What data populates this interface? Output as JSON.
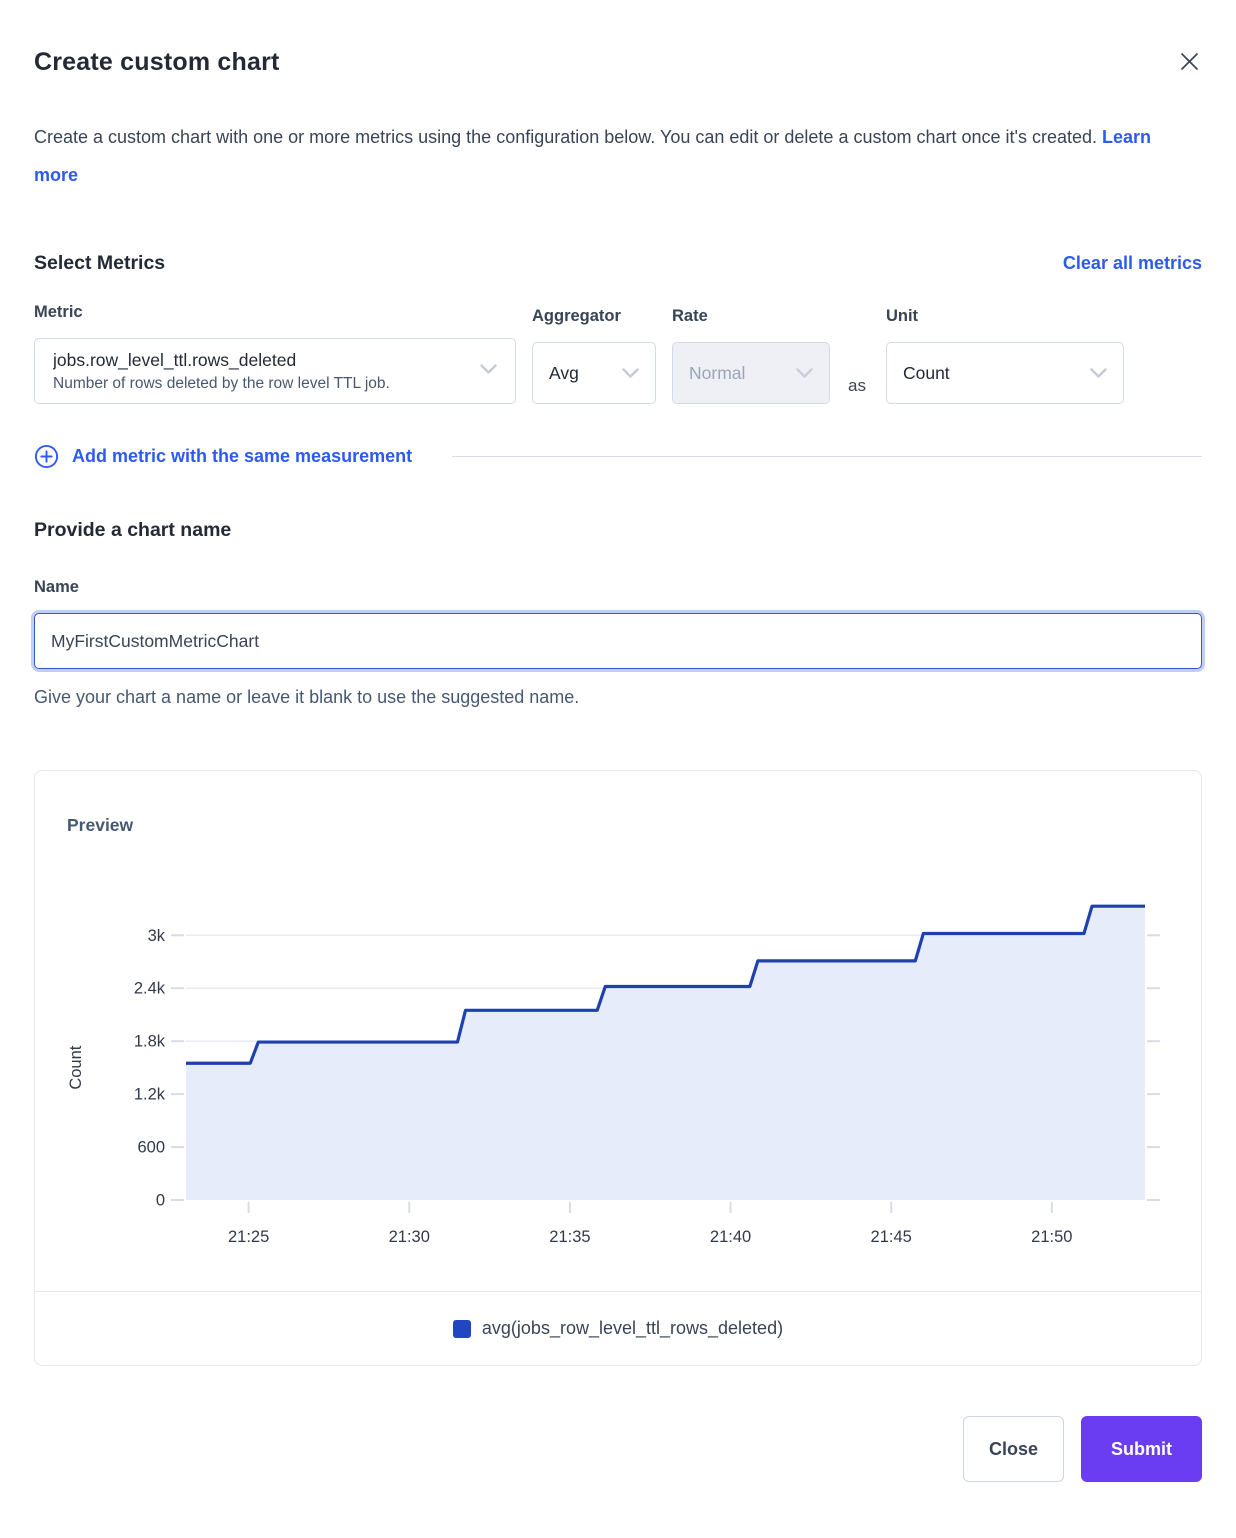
{
  "dialog": {
    "title": "Create custom chart",
    "description": "Create a custom chart with one or more metrics using the configuration below. You can edit or delete a custom chart once it's created.",
    "learn_more_label": "Learn more"
  },
  "metrics": {
    "heading": "Select Metrics",
    "clear_all_label": "Clear all metrics",
    "metric_label": "Metric",
    "metric": {
      "value": "jobs.row_level_ttl.rows_deleted",
      "description": "Number of rows deleted by the row level TTL job."
    },
    "aggregator_label": "Aggregator",
    "aggregator_value": "Avg",
    "rate_label": "Rate",
    "rate_value": "Normal",
    "as_text": "as",
    "unit_label": "Unit",
    "unit_value": "Count",
    "add_metric_label": "Add metric with the same measurement"
  },
  "name_section": {
    "heading": "Provide a chart name",
    "label": "Name",
    "value": "MyFirstCustomMetricChart",
    "helper": "Give your chart a name or leave it blank to use the suggested name."
  },
  "preview": {
    "heading": "Preview"
  },
  "footer": {
    "close_label": "Close",
    "submit_label": "Submit"
  },
  "colors": {
    "accent": "#2d5af0",
    "series-line": "#1e41ae",
    "series-fill": "#e7ecfa",
    "swatch": "#2145c3",
    "submit": "#6a3df2"
  },
  "chart_data": {
    "type": "area",
    "title": "Preview",
    "xlabel": "",
    "ylabel": "Count",
    "grid": true,
    "legend_position": "bottom",
    "xlim_minutes_after_21_00": [
      23.05,
      52.9
    ],
    "ylim": [
      0,
      3400
    ],
    "x_ticks": [
      {
        "minute": 25,
        "label": "21:25"
      },
      {
        "minute": 30,
        "label": "21:30"
      },
      {
        "minute": 35,
        "label": "21:35"
      },
      {
        "minute": 40,
        "label": "21:40"
      },
      {
        "minute": 45,
        "label": "21:45"
      },
      {
        "minute": 50,
        "label": "21:50"
      }
    ],
    "y_ticks": [
      {
        "value": 0,
        "label": "0"
      },
      {
        "value": 600,
        "label": "600"
      },
      {
        "value": 1200,
        "label": "1.2k"
      },
      {
        "value": 1800,
        "label": "1.8k"
      },
      {
        "value": 2400,
        "label": "2.4k"
      },
      {
        "value": 3000,
        "label": "3k"
      }
    ],
    "series": [
      {
        "name": "avg(jobs_row_level_ttl_rows_deleted)",
        "color": "#2145c3",
        "line_color": "#1e41ae",
        "fill_color": "#e7ecfa",
        "step_points_minute_value": [
          [
            23.05,
            1550
          ],
          [
            25.05,
            1550
          ],
          [
            25.3,
            1790
          ],
          [
            31.5,
            1790
          ],
          [
            31.75,
            2150
          ],
          [
            35.85,
            2150
          ],
          [
            36.1,
            2420
          ],
          [
            40.6,
            2420
          ],
          [
            40.85,
            2710
          ],
          [
            45.75,
            2710
          ],
          [
            46.0,
            3020
          ],
          [
            51.0,
            3020
          ],
          [
            51.25,
            3330
          ],
          [
            52.9,
            3330
          ]
        ]
      }
    ]
  }
}
